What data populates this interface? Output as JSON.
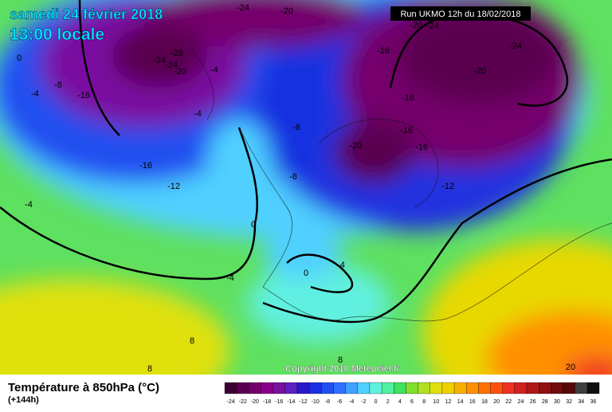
{
  "header": {
    "title": "samedi 24 février 2018",
    "subtitle": "13:00 locale",
    "run": "Run UKMO 12h du 18/02/2018"
  },
  "contour_labels": [
    -24,
    -20,
    -28,
    -24,
    -24,
    -20,
    -4,
    0,
    -8,
    -4,
    -16,
    -4,
    -8,
    -16,
    -12,
    -8,
    -4,
    0,
    -4,
    -4,
    0,
    8,
    8,
    8,
    20,
    -20,
    -24,
    -16,
    -24,
    -20,
    -16,
    -16,
    -16,
    -20,
    -12
  ],
  "copyright": "Copyright 2018 Meteociel.fr",
  "footer": {
    "title": "Température à 850hPa (°C)",
    "lead": "(+144h)"
  },
  "colorbar": {
    "ticks": [
      -24,
      -22,
      -20,
      -18,
      -16,
      -14,
      -12,
      -10,
      -8,
      -6,
      -4,
      -2,
      0,
      2,
      4,
      6,
      8,
      10,
      12,
      14,
      16,
      18,
      20,
      22,
      24,
      26,
      28,
      30,
      32,
      34,
      36
    ],
    "colors": [
      "#3c0034",
      "#5a0050",
      "#74006c",
      "#8a0088",
      "#7a10a0",
      "#5a20c0",
      "#2818c8",
      "#1830e0",
      "#2050f0",
      "#3070ff",
      "#40a0ff",
      "#50d0ff",
      "#60f0e0",
      "#50f0a0",
      "#40e060",
      "#80e030",
      "#b0e020",
      "#e0e010",
      "#f0d000",
      "#f8b000",
      "#ff9000",
      "#ff7000",
      "#ff5010",
      "#f03020",
      "#d02020",
      "#b01818",
      "#901010",
      "#700c0c",
      "#580808",
      "#404040",
      "#101010"
    ]
  }
}
